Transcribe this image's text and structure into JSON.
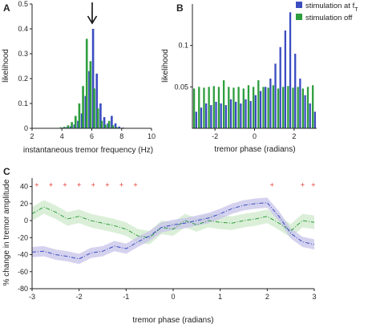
{
  "colors": {
    "blue": "#3b4cc0",
    "green": "#2e9e3e",
    "blue_band": "#c7c3ea",
    "green_band": "#cfeacb",
    "marker": "#e8352b"
  },
  "panels": {
    "a": {
      "label": "A"
    },
    "b": {
      "label": "B"
    },
    "c": {
      "label": "C"
    }
  },
  "legend": {
    "stim_label": "stimulation at f",
    "stim_sub": "T",
    "off_label": "stimulation off"
  },
  "chart_data": [
    {
      "id": "A",
      "type": "bar",
      "xlabel": "instantaneous tremor frequency (Hz)",
      "ylabel": "likelihood",
      "xlim": [
        2,
        10
      ],
      "ylim": [
        0,
        0.5
      ],
      "xticks": [
        "2",
        "4",
        "6",
        "8",
        "10"
      ],
      "yticks": [
        "0",
        "0.1",
        "0.2",
        "0.3",
        "0.4",
        "0.5"
      ],
      "arrow_at": 6,
      "x": [
        4.0,
        4.25,
        4.5,
        4.75,
        5.0,
        5.25,
        5.5,
        5.75,
        6.0,
        6.25,
        6.5,
        6.75,
        7.0,
        7.25,
        7.5,
        7.75,
        8.0
      ],
      "series": [
        {
          "name": "stimulation at fT",
          "values": [
            0.003,
            0.005,
            0.008,
            0.015,
            0.03,
            0.06,
            0.13,
            0.23,
            0.4,
            0.22,
            0.1,
            0.045,
            0.02,
            0.05,
            0.02,
            0.007,
            0.003
          ]
        },
        {
          "name": "stimulation off",
          "values": [
            0.004,
            0.006,
            0.012,
            0.025,
            0.05,
            0.1,
            0.17,
            0.36,
            0.27,
            0.16,
            0.08,
            0.03,
            0.015,
            0.03,
            0.012,
            0.005,
            0.002
          ]
        }
      ]
    },
    {
      "id": "B",
      "type": "bar",
      "xlabel": "tremor phase (radians)",
      "ylabel": "likelihood",
      "xlim": [
        -3.14,
        3.14
      ],
      "ylim": [
        0,
        0.15
      ],
      "xticks": [
        "-2",
        "0",
        "2"
      ],
      "xtick_values": [
        -2,
        0,
        2
      ],
      "yticks": [
        "0.05",
        "0.1"
      ],
      "ytick_values": [
        0.05,
        0.1
      ],
      "x": [
        -3.0,
        -2.75,
        -2.5,
        -2.25,
        -2.0,
        -1.75,
        -1.5,
        -1.25,
        -1.0,
        -0.75,
        -0.5,
        -0.25,
        0.0,
        0.25,
        0.5,
        0.75,
        1.0,
        1.25,
        1.5,
        1.75,
        2.0,
        2.25,
        2.5,
        2.75,
        3.0
      ],
      "series": [
        {
          "name": "stimulation at fT",
          "values": [
            0.02,
            0.025,
            0.03,
            0.028,
            0.032,
            0.03,
            0.028,
            0.035,
            0.032,
            0.03,
            0.035,
            0.033,
            0.04,
            0.045,
            0.05,
            0.06,
            0.078,
            0.098,
            0.118,
            0.14,
            0.09,
            0.06,
            0.04,
            0.03,
            0.02
          ]
        },
        {
          "name": "stimulation off",
          "values": [
            0.048,
            0.05,
            0.049,
            0.05,
            0.051,
            0.05,
            0.058,
            0.05,
            0.049,
            0.05,
            0.048,
            0.052,
            0.05,
            0.058,
            0.05,
            0.049,
            0.052,
            0.048,
            0.05,
            0.051,
            0.049,
            0.05,
            0.048,
            0.05,
            0.052
          ]
        }
      ]
    },
    {
      "id": "C",
      "type": "line",
      "xlabel": "tremor phase (radians)",
      "ylabel": "% change in tremor amplitude",
      "xlim": [
        -3,
        3
      ],
      "ylim": [
        -80,
        50
      ],
      "xticks": [
        "-3",
        "-2",
        "-1",
        "0",
        "1",
        "2",
        "3"
      ],
      "xtick_values": [
        -3,
        -2,
        -1,
        0,
        1,
        2,
        3
      ],
      "yticks": [
        "-80",
        "-60",
        "-40",
        "-20",
        "0",
        "20",
        "40"
      ],
      "ytick_values": [
        -80,
        -60,
        -40,
        -20,
        0,
        20,
        40
      ],
      "x": [
        -3.0,
        -2.75,
        -2.5,
        -2.25,
        -2.0,
        -1.75,
        -1.5,
        -1.25,
        -1.0,
        -0.75,
        -0.5,
        -0.25,
        0.0,
        0.25,
        0.5,
        0.75,
        1.0,
        1.25,
        1.5,
        1.75,
        2.0,
        2.25,
        2.5,
        2.75,
        3.0
      ],
      "series": [
        {
          "name": "stimulation at fT",
          "values": [
            -37,
            -36,
            -40,
            -42,
            -45,
            -38,
            -36,
            -30,
            -33,
            -25,
            -18,
            -8,
            -5,
            -3,
            0,
            3,
            8,
            14,
            18,
            20,
            21,
            5,
            -15,
            -25,
            -28
          ],
          "band": 6
        },
        {
          "name": "stimulation off",
          "values": [
            8,
            16,
            10,
            2,
            5,
            0,
            -3,
            -6,
            -10,
            -18,
            -20,
            -8,
            -10,
            0,
            -5,
            0,
            -2,
            -3,
            0,
            2,
            5,
            -3,
            -12,
            0,
            -2
          ],
          "band": 8
        }
      ],
      "significance_marker": "+",
      "significance_x": [
        -2.9,
        -2.6,
        -2.3,
        -2.0,
        -1.7,
        -1.4,
        -1.1,
        -0.8,
        2.1,
        2.75,
        2.98
      ]
    }
  ]
}
